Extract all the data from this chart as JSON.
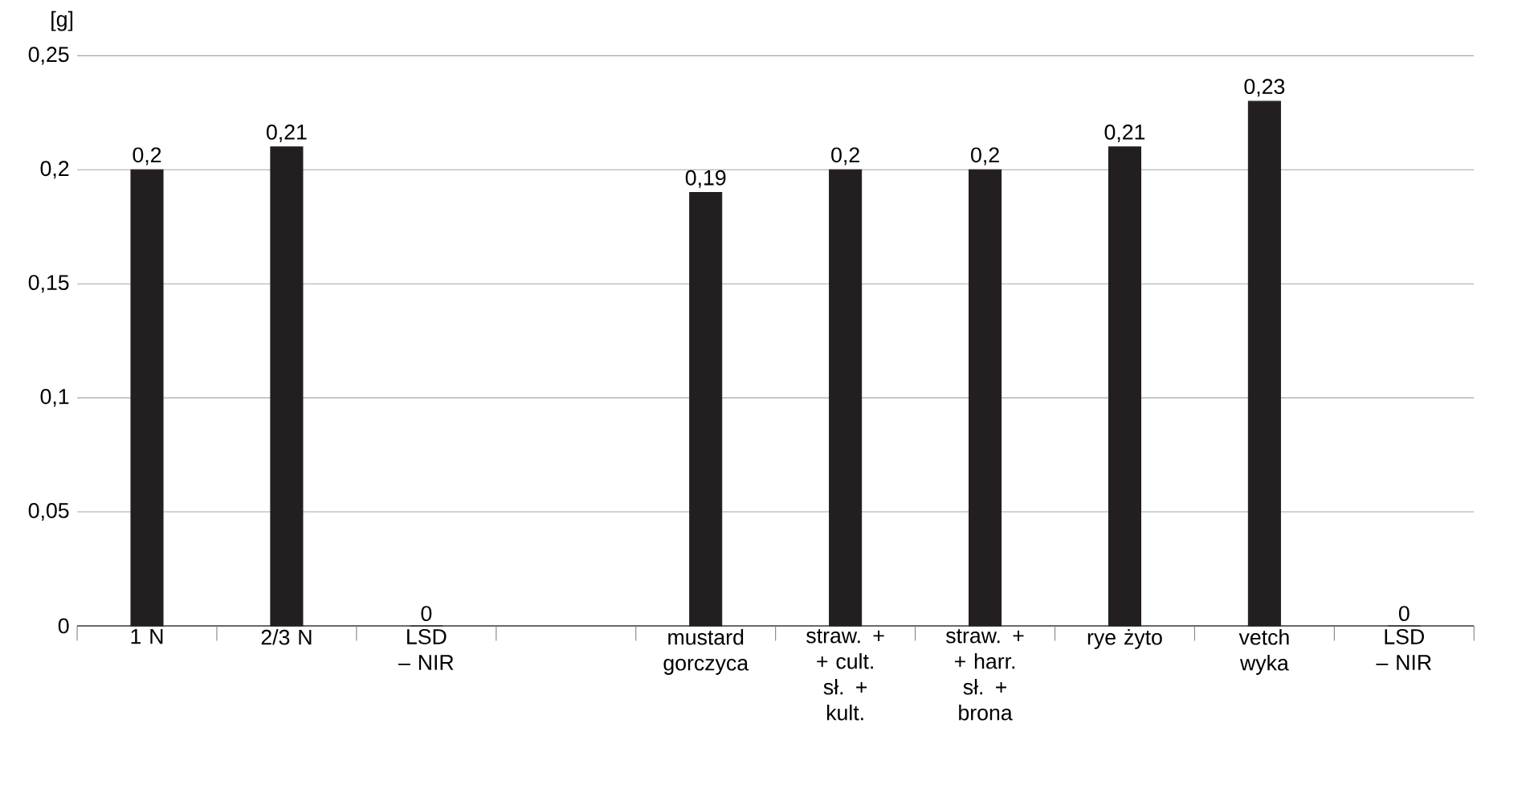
{
  "chart_data": {
    "type": "bar",
    "ylabel": "[g]",
    "categories": [
      "1 N",
      "2/3 N",
      "LSD – NIR",
      null,
      "mustard gorczyca",
      "straw. + + cult. sł. + kult.",
      "straw. + + harr. sł. + brona",
      "rye żyto",
      "vetch wyka",
      "LSD – NIR"
    ],
    "values": [
      0.2,
      0.21,
      0,
      null,
      0.19,
      0.2,
      0.2,
      0.21,
      0.23,
      0
    ],
    "value_labels": [
      "0,2",
      "0,21",
      "0",
      null,
      "0,19",
      "0,2",
      "0,2",
      "0,21",
      "0,23",
      "0"
    ],
    "color": "#231f20",
    "ylim": [
      0,
      0.25
    ],
    "yticks": [
      {
        "value": 0,
        "label": "0"
      },
      {
        "value": 0.05,
        "label": "0,05"
      },
      {
        "value": 0.1,
        "label": "0,1"
      },
      {
        "value": 0.15,
        "label": "0,15"
      },
      {
        "value": 0.2,
        "label": "0,2"
      },
      {
        "value": 0.25,
        "label": "0,25"
      }
    ],
    "grid": "y"
  }
}
